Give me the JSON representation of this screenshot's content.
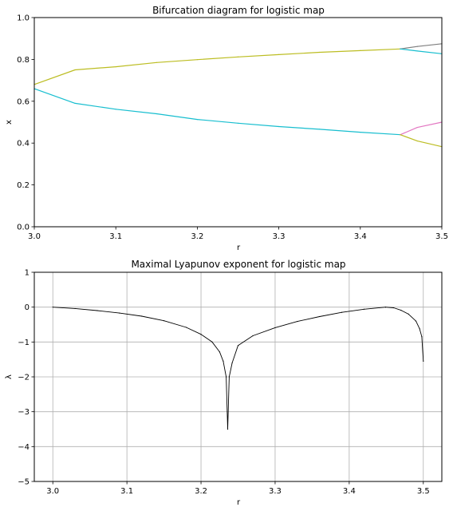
{
  "chart_data": [
    {
      "type": "scatter",
      "title": "Bifurcation diagram for logistic map",
      "xlabel": "r",
      "ylabel": "x",
      "xlim": [
        3.0,
        3.5
      ],
      "ylim": [
        0.0,
        1.0
      ],
      "xticks": [
        "3.0",
        "3.1",
        "3.2",
        "3.3",
        "3.4",
        "3.5"
      ],
      "yticks": [
        "0.0",
        "0.2",
        "0.4",
        "0.6",
        "0.8",
        "1.0"
      ],
      "grid": false,
      "legend": "none",
      "colors": [
        "#17becf",
        "#bcbd22",
        "#7f7f7f",
        "#e377c2"
      ],
      "series": [
        {
          "color": "#17becf",
          "x": [
            3.0,
            3.05,
            3.1,
            3.15,
            3.2,
            3.25,
            3.3,
            3.35,
            3.4,
            3.449
          ],
          "y": [
            0.66,
            0.59,
            0.562,
            0.54,
            0.513,
            0.495,
            0.479,
            0.466,
            0.452,
            0.44
          ]
        },
        {
          "color": "#bcbd22",
          "x": [
            3.0,
            3.05,
            3.1,
            3.15,
            3.2,
            3.25,
            3.3,
            3.35,
            3.4,
            3.449
          ],
          "y": [
            0.68,
            0.75,
            0.765,
            0.785,
            0.799,
            0.812,
            0.823,
            0.834,
            0.842,
            0.85
          ]
        },
        {
          "color": "#7f7f7f",
          "x": [
            3.449,
            3.47,
            3.5
          ],
          "y": [
            0.85,
            0.862,
            0.875
          ]
        },
        {
          "color": "#17becf",
          "x": [
            3.449,
            3.47,
            3.5
          ],
          "y": [
            0.85,
            0.84,
            0.827
          ]
        },
        {
          "color": "#e377c2",
          "x": [
            3.449,
            3.47,
            3.5
          ],
          "y": [
            0.44,
            0.475,
            0.5
          ]
        },
        {
          "color": "#bcbd22",
          "x": [
            3.449,
            3.47,
            3.5
          ],
          "y": [
            0.44,
            0.41,
            0.383
          ]
        }
      ]
    },
    {
      "type": "scatter",
      "title": "Maximal Lyapunov exponent for logistic map",
      "xlabel": "r",
      "ylabel": "λ",
      "xlim": [
        2.975,
        3.525
      ],
      "ylim": [
        -5,
        1
      ],
      "xticks": [
        "3.0",
        "3.1",
        "3.2",
        "3.3",
        "3.4",
        "3.5"
      ],
      "yticks": [
        "−5",
        "−4",
        "−3",
        "−2",
        "−1",
        "0",
        "1"
      ],
      "grid": true,
      "legend": "none",
      "colors": [
        "#000000"
      ],
      "series": [
        {
          "color": "#000000",
          "x": [
            3.0,
            3.03,
            3.06,
            3.09,
            3.12,
            3.15,
            3.18,
            3.2,
            3.215,
            3.225,
            3.23,
            3.234,
            3.236
          ],
          "y": [
            0.0,
            -0.04,
            -0.1,
            -0.17,
            -0.26,
            -0.39,
            -0.58,
            -0.78,
            -1.0,
            -1.28,
            -1.55,
            -2.0,
            -3.5
          ]
        },
        {
          "color": "#000000",
          "x": [
            3.236,
            3.238,
            3.242,
            3.25,
            3.27,
            3.3,
            3.33,
            3.36,
            3.39,
            3.42,
            3.449
          ],
          "y": [
            -3.5,
            -2.0,
            -1.6,
            -1.1,
            -0.82,
            -0.59,
            -0.41,
            -0.27,
            -0.15,
            -0.06,
            0.0
          ]
        },
        {
          "color": "#000000",
          "x": [
            3.449,
            3.46,
            3.47,
            3.48,
            3.49,
            3.495,
            3.498,
            3.5
          ],
          "y": [
            0.0,
            -0.02,
            -0.09,
            -0.2,
            -0.4,
            -0.62,
            -0.85,
            -1.55
          ]
        }
      ]
    }
  ]
}
